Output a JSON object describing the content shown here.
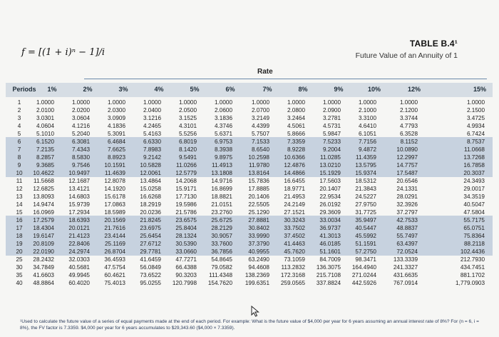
{
  "formula": "f = [(1 + i)ⁿ − 1]/i",
  "table_title": "TABLE B.4¹",
  "table_subtitle": "Future Value of an Annuity of 1",
  "rate_label": "Rate",
  "headers": [
    "Periods",
    "1%",
    "2%",
    "3%",
    "4%",
    "5%",
    "6%",
    "7%",
    "8%",
    "9%",
    "10%",
    "12%",
    "15%"
  ],
  "rows": [
    [
      "1",
      "1.0000",
      "1.0000",
      "1.0000",
      "1.0000",
      "1.0000",
      "1.0000",
      "1.0000",
      "1.0000",
      "1.0000",
      "1.0000",
      "1.0000",
      "1.0000"
    ],
    [
      "2",
      "2.0100",
      "2.0200",
      "2.0300",
      "2.0400",
      "2.0500",
      "2.0600",
      "2.0700",
      "2.0800",
      "2.0900",
      "2.1000",
      "2.1200",
      "2.1500"
    ],
    [
      "3",
      "3.0301",
      "3.0604",
      "3.0909",
      "3.1216",
      "3.1525",
      "3.1836",
      "3.2149",
      "3.2464",
      "3.2781",
      "3.3100",
      "3.3744",
      "3.4725"
    ],
    [
      "4",
      "4.0604",
      "4.1216",
      "4.1836",
      "4.2465",
      "4.3101",
      "4.3746",
      "4.4399",
      "4.5061",
      "4.5731",
      "4.6410",
      "4.7793",
      "4.9934"
    ],
    [
      "5",
      "5.1010",
      "5.2040",
      "5.3091",
      "5.4163",
      "5.5256",
      "5.6371",
      "5.7507",
      "5.8666",
      "5.9847",
      "6.1051",
      "6.3528",
      "6.7424"
    ],
    [
      "6",
      "6.1520",
      "6.3081",
      "6.4684",
      "6.6330",
      "6.8019",
      "6.9753",
      "7.1533",
      "7.3359",
      "7.5233",
      "7.7156",
      "8.1152",
      "8.7537"
    ],
    [
      "7",
      "7.2135",
      "7.4343",
      "7.6625",
      "7.8983",
      "8.1420",
      "8.3938",
      "8.6540",
      "8.9228",
      "9.2004",
      "9.4872",
      "10.0890",
      "11.0668"
    ],
    [
      "8",
      "8.2857",
      "8.5830",
      "8.8923",
      "9.2142",
      "9.5491",
      "9.8975",
      "10.2598",
      "10.6366",
      "11.0285",
      "11.4359",
      "12.2997",
      "13.7268"
    ],
    [
      "9",
      "9.3685",
      "9.7546",
      "10.1591",
      "10.5828",
      "11.0266",
      "11.4913",
      "11.9780",
      "12.4876",
      "13.0210",
      "13.5795",
      "14.7757",
      "16.7858"
    ],
    [
      "10",
      "10.4622",
      "10.9497",
      "11.4639",
      "12.0061",
      "12.5779",
      "13.1808",
      "13.8164",
      "14.4866",
      "15.1929",
      "15.9374",
      "17.5487",
      "20.3037"
    ],
    [
      "11",
      "11.5668",
      "12.1687",
      "12.8078",
      "13.4864",
      "14.2068",
      "14.9716",
      "15.7836",
      "16.6455",
      "17.5603",
      "18.5312",
      "20.6546",
      "24.3493"
    ],
    [
      "12",
      "12.6825",
      "13.4121",
      "14.1920",
      "15.0258",
      "15.9171",
      "16.8699",
      "17.8885",
      "18.9771",
      "20.1407",
      "21.3843",
      "24.1331",
      "29.0017"
    ],
    [
      "13",
      "13.8093",
      "14.6803",
      "15.6178",
      "16.6268",
      "17.7130",
      "18.8821",
      "20.1406",
      "21.4953",
      "22.9534",
      "24.5227",
      "28.0291",
      "34.3519"
    ],
    [
      "14",
      "14.9474",
      "15.9739",
      "17.0863",
      "18.2919",
      "19.5986",
      "21.0151",
      "22.5505",
      "24.2149",
      "26.0192",
      "27.9750",
      "32.3926",
      "40.5047"
    ],
    [
      "15",
      "16.0969",
      "17.2934",
      "18.5989",
      "20.0236",
      "21.5786",
      "23.2760",
      "25.1290",
      "27.1521",
      "29.3609",
      "31.7725",
      "37.2797",
      "47.5804"
    ],
    [
      "16",
      "17.2579",
      "18.6393",
      "20.1569",
      "21.8245",
      "23.6575",
      "25.6725",
      "27.8881",
      "30.3243",
      "33.0034",
      "35.9497",
      "42.7533",
      "55.7175"
    ],
    [
      "17",
      "18.4304",
      "20.0121",
      "21.7616",
      "23.6975",
      "25.8404",
      "28.2129",
      "30.8402",
      "33.7502",
      "36.9737",
      "40.5447",
      "48.8837",
      "65.0751"
    ],
    [
      "18",
      "19.6147",
      "21.4123",
      "23.4144",
      "25.6454",
      "28.1324",
      "30.9057",
      "33.9990",
      "37.4502",
      "41.3013",
      "45.5992",
      "55.7497",
      "75.8364"
    ],
    [
      "19",
      "20.8109",
      "22.8406",
      "25.1169",
      "27.6712",
      "30.5390",
      "33.7600",
      "37.3790",
      "41.4463",
      "46.0185",
      "51.1591",
      "63.4397",
      "88.2118"
    ],
    [
      "20",
      "22.0190",
      "24.2974",
      "26.8704",
      "29.7781",
      "33.0660",
      "36.7856",
      "40.9955",
      "45.7620",
      "51.1601",
      "57.2750",
      "72.0524",
      "102.4436"
    ],
    [
      "25",
      "28.2432",
      "32.0303",
      "36.4593",
      "41.6459",
      "47.7271",
      "54.8645",
      "63.2490",
      "73.1059",
      "84.7009",
      "98.3471",
      "133.3339",
      "212.7930"
    ],
    [
      "30",
      "34.7849",
      "40.5681",
      "47.5754",
      "56.0849",
      "66.4388",
      "79.0582",
      "94.4608",
      "113.2832",
      "136.3075",
      "164.4940",
      "241.3327",
      "434.7451"
    ],
    [
      "35",
      "41.6603",
      "49.9945",
      "60.4621",
      "73.6522",
      "90.3203",
      "111.4348",
      "138.2369",
      "172.3168",
      "215.7108",
      "271.0244",
      "431.6635",
      "881.1702"
    ],
    [
      "40",
      "48.8864",
      "60.4020",
      "75.4013",
      "95.0255",
      "120.7998",
      "154.7620",
      "199.6351",
      "259.0565",
      "337.8824",
      "442.5926",
      "767.0914",
      "1,779.0903"
    ]
  ],
  "footnote": "¹Used to calculate the future value of a series of equal payments made at the end of each period. For example: What is the future value of $4,000 per year for 6 years assuming an annual interest rate of 8%? For (n = 6, i = 8%), the FV factor is 7.3359. $4,000 per year for 6 years accumulates to $29,343.60 ($4,000 × 7.3359).",
  "colors": {
    "band": "#c7d2df",
    "header_band": "#d6dde4",
    "rule": "#6c8bab"
  }
}
